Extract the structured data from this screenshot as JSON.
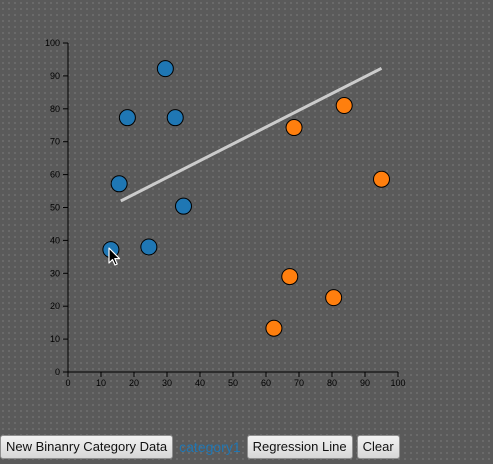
{
  "colors": {
    "background": "#5a5a5a",
    "category0": "#1f77b4",
    "category1": "#ff7f0e",
    "point_stroke": "#000000",
    "regression_line": "#cccccc",
    "axis": "#000000"
  },
  "chart_data": {
    "type": "scatter",
    "xlim": [
      0,
      100
    ],
    "ylim": [
      0,
      100
    ],
    "x_ticks": [
      0,
      10,
      20,
      30,
      40,
      50,
      60,
      70,
      80,
      90,
      100
    ],
    "y_ticks": [
      0,
      10,
      20,
      30,
      40,
      50,
      60,
      70,
      80,
      90,
      100
    ],
    "grid": false,
    "series": [
      {
        "color": "#1f77b4",
        "points": [
          {
            "x": 29.5,
            "y": 92.2
          },
          {
            "x": 18,
            "y": 77.3
          },
          {
            "x": 32.5,
            "y": 77.3
          },
          {
            "x": 15.5,
            "y": 57.2
          },
          {
            "x": 35,
            "y": 50.4
          },
          {
            "x": 13,
            "y": 37.2
          },
          {
            "x": 24.5,
            "y": 38
          }
        ]
      },
      {
        "color": "#ff7f0e",
        "points": [
          {
            "x": 83.7,
            "y": 81
          },
          {
            "x": 68.5,
            "y": 74.3
          },
          {
            "x": 95,
            "y": 58.6
          },
          {
            "x": 67.2,
            "y": 29
          },
          {
            "x": 80.5,
            "y": 22.6
          },
          {
            "x": 62.4,
            "y": 13.3
          }
        ]
      }
    ],
    "regression_line": {
      "x": [
        16,
        95
      ],
      "y": [
        52,
        92.3
      ]
    }
  },
  "controls": {
    "new_data_label": "New Binanry Category Data",
    "category_label": "category1",
    "regression_label": "Regression Line",
    "clear_label": "Clear"
  },
  "cursor_icon": "arrow-cursor-icon"
}
